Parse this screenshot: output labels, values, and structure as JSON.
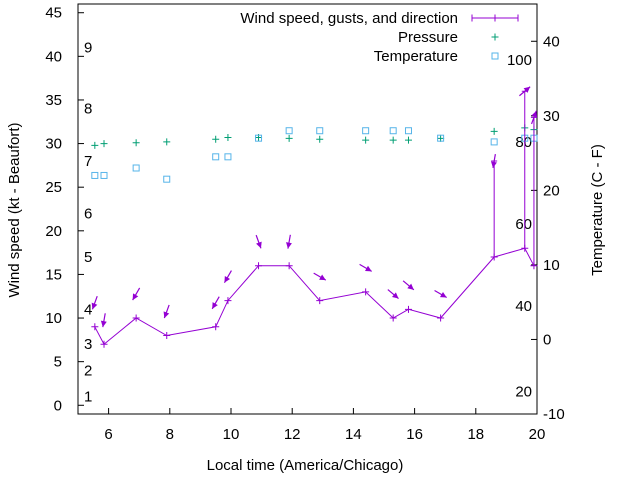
{
  "chart_data": {
    "type": "line",
    "xlabel": "Local time (America/Chicago)",
    "ylabel": "Wind speed (kt - Beaufort)",
    "y2label": "Temperature (C - F)",
    "xlim": [
      5,
      20
    ],
    "ylim": [
      -1,
      46
    ],
    "y2lim": [
      -10,
      45
    ],
    "x_ticks": [
      6,
      8,
      10,
      12,
      14,
      16,
      18,
      20
    ],
    "y_ticks": [
      0,
      5,
      10,
      15,
      20,
      25,
      30,
      35,
      40,
      45
    ],
    "y2_ticks": [
      -10,
      0,
      10,
      20,
      30,
      40
    ],
    "beaufort_labels": [
      {
        "text": "1",
        "y": 1
      },
      {
        "text": "2",
        "y": 4
      },
      {
        "text": "3",
        "y": 7
      },
      {
        "text": "4",
        "y": 11
      },
      {
        "text": "5",
        "y": 17
      },
      {
        "text": "6",
        "y": 22
      },
      {
        "text": "7",
        "y": 28
      },
      {
        "text": "8",
        "y": 34
      },
      {
        "text": "9",
        "y": 41
      }
    ],
    "fahrenheit_labels": [
      {
        "text": "20",
        "y": -7
      },
      {
        "text": "40",
        "y": 4.5
      },
      {
        "text": "60",
        "y": 15.5
      },
      {
        "text": "80",
        "y": 26.5
      },
      {
        "text": "100",
        "y": 37.5
      }
    ],
    "legend": {
      "position": "top-right",
      "entries": [
        "Wind speed, gusts, and direction",
        "Pressure",
        "Temperature"
      ]
    },
    "colors": {
      "wind": "#9400d3",
      "pressure": "#009e73",
      "temperature": "#56b4e9"
    },
    "series": [
      {
        "name": "Wind speed, gusts, and direction",
        "type": "line",
        "x": [
          5.55,
          5.85,
          6.9,
          7.9,
          9.5,
          9.9,
          10.9,
          11.9,
          12.9,
          14.4,
          15.3,
          15.8,
          16.85,
          18.6,
          19.6,
          19.9
        ],
        "y": [
          9,
          7,
          10,
          8,
          9,
          12,
          16,
          16,
          12,
          13,
          10,
          11,
          10,
          17,
          18,
          16
        ],
        "gusts": [
          null,
          null,
          null,
          null,
          null,
          null,
          null,
          null,
          null,
          null,
          null,
          null,
          null,
          28,
          36,
          33
        ],
        "direction_deg": [
          20,
          10,
          30,
          20,
          30,
          30,
          340,
          10,
          300,
          300,
          310,
          310,
          300,
          10,
          230,
          200
        ]
      },
      {
        "name": "Pressure",
        "type": "scatter",
        "x": [
          5.55,
          5.85,
          6.9,
          7.9,
          9.5,
          9.9,
          10.9,
          11.9,
          12.9,
          14.4,
          15.3,
          15.8,
          16.85,
          18.6,
          19.6,
          19.9
        ],
        "y": [
          29.8,
          30.0,
          30.1,
          30.2,
          30.5,
          30.7,
          30.7,
          30.6,
          30.5,
          30.4,
          30.4,
          30.4,
          30.6,
          31.4,
          31.8,
          31.6
        ]
      },
      {
        "name": "Temperature",
        "type": "scatter",
        "x": [
          5.55,
          5.85,
          6.9,
          7.9,
          9.5,
          9.9,
          10.9,
          11.9,
          12.9,
          14.4,
          15.3,
          15.8,
          16.85,
          18.6,
          19.6,
          19.9
        ],
        "y": [
          22,
          22,
          23,
          21.5,
          24.5,
          24.5,
          27,
          28,
          28,
          28,
          28,
          28,
          27,
          26.5,
          27,
          27
        ]
      }
    ]
  }
}
